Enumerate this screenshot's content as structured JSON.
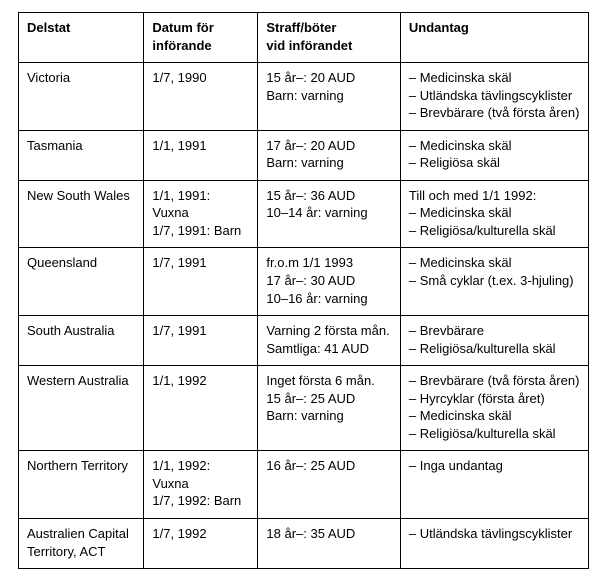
{
  "table": {
    "headers": {
      "c0": "Delstat",
      "c1_l1": "Datum för",
      "c1_l2": "införande",
      "c2_l1": "Straff/böter",
      "c2_l2": "vid införandet",
      "c3": "Undantag"
    },
    "rows": [
      {
        "state": "Victoria",
        "date": [
          "1/7, 1990"
        ],
        "penalty": [
          "15 år–: 20 AUD",
          "Barn: varning"
        ],
        "exceptions": [
          "– Medicinska skäl",
          "– Utländska tävlingscyklister",
          "– Brevbärare (två första åren)"
        ]
      },
      {
        "state": "Tasmania",
        "date": [
          "1/1, 1991"
        ],
        "penalty": [
          "17 år–: 20 AUD",
          "Barn: varning"
        ],
        "exceptions": [
          "– Medicinska skäl",
          "– Religiösa skäl"
        ]
      },
      {
        "state": "New South Wales",
        "date": [
          "1/1, 1991: Vuxna",
          "1/7, 1991: Barn"
        ],
        "penalty": [
          "15 år–: 36 AUD",
          "10–14 år: varning"
        ],
        "exceptions": [
          "Till och med 1/1 1992:",
          "– Medicinska skäl",
          "– Religiösa/kulturella skäl"
        ]
      },
      {
        "state": "Queensland",
        "date": [
          "1/7, 1991"
        ],
        "penalty": [
          "fr.o.m 1/1 1993",
          "17 år–: 30 AUD",
          "10–16 år: varning"
        ],
        "exceptions": [
          "– Medicinska skäl",
          "– Små cyklar (t.ex. 3-hjuling)"
        ]
      },
      {
        "state": "South Australia",
        "date": [
          "1/7, 1991"
        ],
        "penalty": [
          "Varning 2 första mån.",
          "Samtliga: 41 AUD"
        ],
        "exceptions": [
          "– Brevbärare",
          "– Religiösa/kulturella skäl"
        ]
      },
      {
        "state": "Western Australia",
        "date": [
          "1/1, 1992"
        ],
        "penalty": [
          "Inget första 6 mån.",
          "15 år–: 25 AUD",
          "Barn: varning"
        ],
        "exceptions": [
          "– Brevbärare (två första åren)",
          "– Hyrcyklar (första året)",
          "– Medicinska skäl",
          "– Religiösa/kulturella skäl"
        ]
      },
      {
        "state": "Northern Territory",
        "date": [
          "1/1, 1992: Vuxna",
          "1/7, 1992: Barn"
        ],
        "penalty": [
          "16 år–: 25 AUD"
        ],
        "exceptions": [
          "– Inga undantag"
        ]
      },
      {
        "state": "Australien Capital Territory, ACT",
        "date": [
          "1/7, 1992"
        ],
        "penalty": [
          "18 år–: 35 AUD"
        ],
        "exceptions": [
          "– Utländska tävlingscyklister"
        ]
      }
    ]
  }
}
